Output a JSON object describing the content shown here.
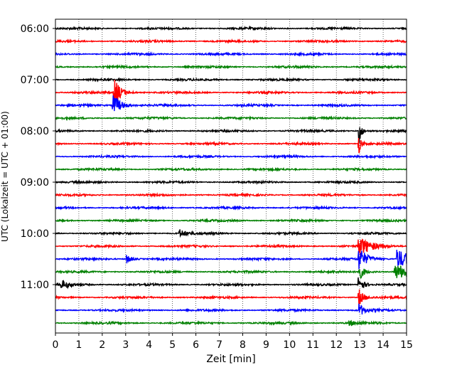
{
  "chart_data": {
    "type": "line",
    "title": "",
    "xlabel": "Zeit  [min]",
    "ylabel": "UTC (Lokalzeit = UTC + 01:00)",
    "xlim": [
      0,
      15
    ],
    "x_ticks": [
      "0",
      "1",
      "2",
      "3",
      "4",
      "5",
      "6",
      "7",
      "8",
      "9",
      "10",
      "11",
      "12",
      "13",
      "14",
      "15"
    ],
    "y_ticks": [
      "06:00",
      "07:00",
      "08:00",
      "09:00",
      "10:00",
      "11:00"
    ],
    "grid": "vertical dotted",
    "trace_colors": [
      "#000000",
      "#ff0000",
      "#0000ff",
      "#008000"
    ],
    "traces_start": "06:00",
    "trace_interval_min": 15,
    "trace_count": 24,
    "events": [
      {
        "trace": 5,
        "time_min": 2.5,
        "amplitude": 2.0,
        "decay": 0.25
      },
      {
        "trace": 6,
        "time_min": 2.45,
        "amplitude": 1.6,
        "decay": 0.3
      },
      {
        "trace": 8,
        "time_min": 12.95,
        "amplitude": 2.4,
        "decay": 0.1
      },
      {
        "trace": 9,
        "time_min": 12.95,
        "amplitude": 1.5,
        "decay": 0.1
      },
      {
        "trace": 17,
        "time_min": 12.95,
        "amplitude": 1.3,
        "decay": 0.5
      },
      {
        "trace": 18,
        "time_min": 12.95,
        "amplitude": 1.6,
        "decay": 0.3
      },
      {
        "trace": 19,
        "time_min": 12.95,
        "amplitude": 1.2,
        "decay": 0.2
      },
      {
        "trace": 20,
        "time_min": 12.95,
        "amplitude": 1.2,
        "decay": 0.2
      },
      {
        "trace": 21,
        "time_min": 12.95,
        "amplitude": 1.2,
        "decay": 0.2
      },
      {
        "trace": 22,
        "time_min": 12.95,
        "amplitude": 1.0,
        "decay": 0.2
      },
      {
        "trace": 18,
        "time_min": 14.6,
        "amplitude": 1.3,
        "decay": 0.6
      },
      {
        "trace": 19,
        "time_min": 14.5,
        "amplitude": 1.0,
        "decay": 0.8
      },
      {
        "trace": 18,
        "time_min": 3.05,
        "amplitude": 0.6,
        "decay": 0.2
      },
      {
        "trace": 16,
        "time_min": 5.3,
        "amplitude": 0.5,
        "decay": 0.3
      },
      {
        "trace": 20,
        "time_min": 0.25,
        "amplitude": 0.5,
        "decay": 0.4
      },
      {
        "trace": 23,
        "time_min": 12.5,
        "amplitude": 0.3,
        "decay": 0.4
      }
    ]
  }
}
